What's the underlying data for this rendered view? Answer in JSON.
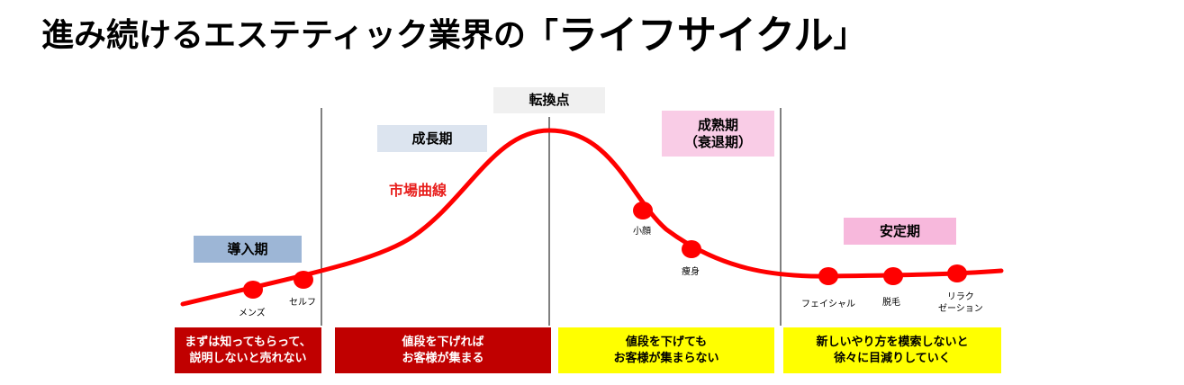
{
  "title": {
    "main": "進み続けるエステティック業界の「",
    "highlight": "ライフサイクル",
    "end": "」"
  },
  "stages": {
    "turning_point": "転換点",
    "growth": "成長期",
    "mature_line1": "成熟期",
    "mature_line2": "（衰退期）",
    "intro": "導入期",
    "stable": "安定期"
  },
  "curve_label": "市場曲線",
  "points": {
    "mens": "メンズ",
    "self": "セルフ",
    "small_face": "小顔",
    "slimming": "痩身",
    "facial": "フェイシャル",
    "hair_removal": "脱毛",
    "relax_line1": "リラク",
    "relax_line2": "ゼーション"
  },
  "messages": {
    "intro_line1": "まずは知ってもらって、",
    "intro_line2": "説明しないと売れない",
    "growth_line1": "値段を下げれば",
    "growth_line2": "お客様が集まる",
    "mature_line1": "値段を下げても",
    "mature_line2": "お客様が集まらない",
    "stable_line1": "新しいやり方を模索しないと",
    "stable_line2": "徐々に目減りしていく"
  },
  "colors": {
    "curve": "#ff0000",
    "dark_red_box": "#c00000",
    "yellow_box": "#ffff00"
  }
}
